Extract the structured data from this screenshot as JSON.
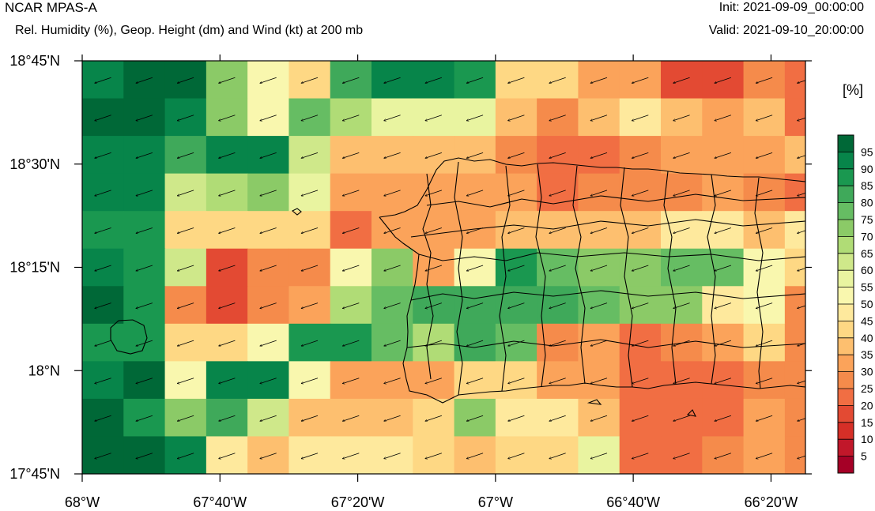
{
  "header": {
    "title_left": "NCAR MPAS-A",
    "subtitle": "Rel. Humidity (%), Geop. Height (dm) and Wind (kt) at 200 mb",
    "init": "Init: 2021-09-09_00:00:00",
    "valid": "Valid: 2021-09-10_20:00:00"
  },
  "chart_data": {
    "type": "heatmap",
    "title": "Rel. Humidity (%), Geop. Height (dm) and Wind (kt) at 200 mb",
    "x_ticks": [
      {
        "value": -68.0,
        "label": "68°W"
      },
      {
        "value": -67.6667,
        "label": "67°40'W"
      },
      {
        "value": -67.3333,
        "label": "67°20'W"
      },
      {
        "value": -67.0,
        "label": "67°W"
      },
      {
        "value": -66.6667,
        "label": "66°40'W"
      },
      {
        "value": -66.3333,
        "label": "66°20'W"
      }
    ],
    "y_ticks": [
      {
        "value": 18.75,
        "label": "18°45'N"
      },
      {
        "value": 18.5,
        "label": "18°30'N"
      },
      {
        "value": 18.25,
        "label": "18°15'N"
      },
      {
        "value": 18.0,
        "label": "18°N"
      },
      {
        "value": 17.75,
        "label": "17°45'N"
      }
    ],
    "xlim": [
      -68.0,
      -66.25
    ],
    "ylim": [
      17.75,
      18.75
    ],
    "colorbar": {
      "unit": "[%]",
      "levels": [
        5,
        10,
        15,
        20,
        25,
        30,
        35,
        40,
        45,
        50,
        55,
        60,
        65,
        70,
        75,
        80,
        85,
        90,
        95
      ],
      "colors": [
        "#a50026",
        "#c1172a",
        "#d62f27",
        "#e34a33",
        "#f16e43",
        "#f58b4b",
        "#fba35a",
        "#fdbf6f",
        "#fed884",
        "#fee99d",
        "#f9f7ae",
        "#e9f4a0",
        "#cfe88a",
        "#b0dc76",
        "#8bca67",
        "#66bd63",
        "#3fa95a",
        "#1a9850",
        "#07854a",
        "#006837"
      ]
    },
    "grid_rows": [
      [
        90,
        95,
        95,
        70,
        50,
        40,
        80,
        90,
        92,
        88,
        40,
        40,
        30,
        30,
        15,
        15,
        25,
        20
      ],
      [
        95,
        95,
        90,
        70,
        50,
        75,
        65,
        55,
        55,
        55,
        35,
        25,
        35,
        45,
        35,
        30,
        35,
        20
      ],
      [
        90,
        90,
        80,
        90,
        90,
        60,
        35,
        35,
        35,
        35,
        25,
        20,
        20,
        25,
        30,
        30,
        30,
        35
      ],
      [
        90,
        90,
        60,
        65,
        70,
        55,
        30,
        30,
        30,
        30,
        30,
        20,
        25,
        25,
        25,
        30,
        25,
        20
      ],
      [
        85,
        85,
        40,
        40,
        40,
        40,
        20,
        30,
        30,
        30,
        35,
        35,
        35,
        35,
        45,
        45,
        35,
        45
      ],
      [
        90,
        85,
        60,
        15,
        25,
        25,
        50,
        70,
        30,
        50,
        85,
        75,
        70,
        70,
        75,
        75,
        50,
        40
      ],
      [
        95,
        85,
        25,
        15,
        25,
        30,
        65,
        75,
        80,
        80,
        80,
        80,
        75,
        70,
        70,
        45,
        50,
        25
      ],
      [
        85,
        85,
        40,
        40,
        50,
        85,
        85,
        75,
        65,
        80,
        75,
        25,
        30,
        20,
        25,
        30,
        40,
        25
      ],
      [
        90,
        95,
        50,
        90,
        90,
        50,
        30,
        30,
        30,
        40,
        40,
        30,
        30,
        20,
        20,
        20,
        25,
        25
      ],
      [
        95,
        85,
        70,
        80,
        60,
        35,
        35,
        35,
        40,
        70,
        45,
        45,
        35,
        20,
        20,
        20,
        30,
        25
      ],
      [
        95,
        95,
        90,
        45,
        35,
        45,
        45,
        45,
        40,
        35,
        40,
        40,
        55,
        20,
        20,
        25,
        30,
        25
      ]
    ],
    "wind": {
      "u": -9,
      "v": -3,
      "units": "kt"
    },
    "grid_on": false,
    "legend_placement": "right"
  }
}
